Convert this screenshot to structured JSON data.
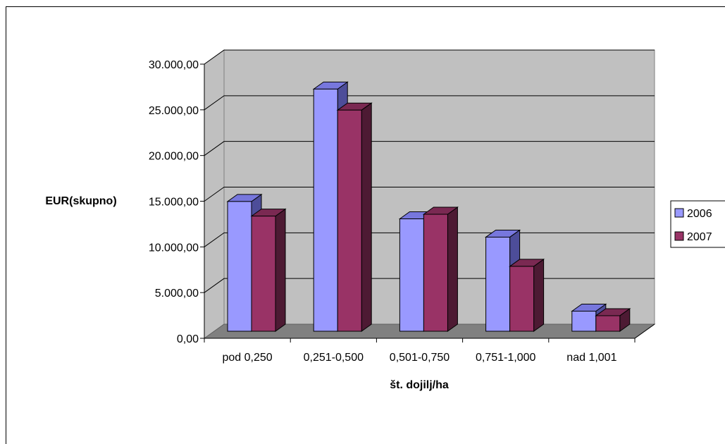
{
  "chart_data": {
    "type": "bar",
    "title": "",
    "xlabel": "št. dojilj/ha",
    "ylabel": "EUR(skupno)",
    "categories": [
      "pod 0,250",
      "0,251-0,500",
      "0,501-0,750",
      "0,751-1,000",
      "nad 1,001"
    ],
    "series": [
      {
        "name": "2006",
        "values": [
          14200,
          26500,
          12300,
          10300,
          2200
        ]
      },
      {
        "name": "2007",
        "values": [
          12600,
          24200,
          12800,
          7100,
          1700
        ]
      }
    ],
    "ylim": [
      0,
      30000
    ],
    "yticks": [
      "0,00",
      "5.000,00",
      "10.000,00",
      "15.000,00",
      "20.000,00",
      "25.000,00",
      "30.000,00"
    ],
    "grid": true,
    "legend": "right",
    "style": "3d-clustered-column",
    "colors": {
      "s2006_front": "#9999FF",
      "s2006_top": "#7777DD",
      "s2006_side": "#4D4D99",
      "s2007_front": "#993366",
      "s2007_top": "#7A2952",
      "s2007_side": "#4D1A33",
      "wall": "#C0C0C0",
      "floor": "#808080",
      "grid": "#000000"
    }
  }
}
